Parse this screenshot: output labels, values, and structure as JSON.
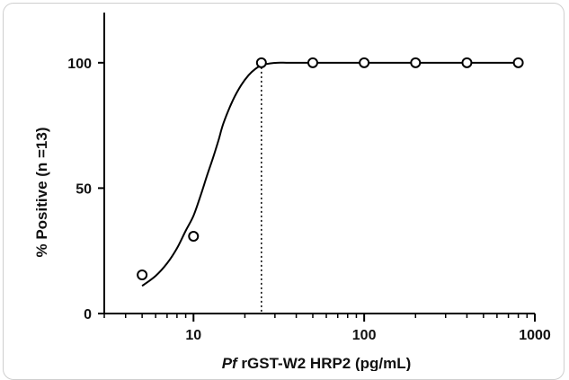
{
  "chart_data": {
    "type": "scatter",
    "title": "",
    "xlabel": {
      "italic_prefix": "Pf",
      "rest": " rGST-W2 HRP2 (pg/mL)"
    },
    "ylabel": "% Positive (n =13)",
    "xscale": "log",
    "xlim": [
      3,
      1000
    ],
    "ylim": [
      0,
      120
    ],
    "xticks": [
      10,
      100,
      1000
    ],
    "xtick_labels": [
      "10",
      "100",
      "1000"
    ],
    "yticks": [
      0,
      50,
      100
    ],
    "ytick_labels": [
      "0",
      "50",
      "100"
    ],
    "grid": false,
    "legend": "none",
    "series": [
      {
        "values": [
          {
            "x": 5,
            "y": 15.4
          },
          {
            "x": 10,
            "y": 30.8
          },
          {
            "x": 25,
            "y": 100
          },
          {
            "x": 50,
            "y": 100
          },
          {
            "x": 100,
            "y": 100
          },
          {
            "x": 200,
            "y": 100
          },
          {
            "x": 400,
            "y": 100
          },
          {
            "x": 800,
            "y": 100
          }
        ]
      }
    ],
    "fit_curve": {
      "type": "sigmoid",
      "x": [
        5,
        6,
        7,
        8,
        9,
        10,
        11,
        12,
        13,
        14,
        15,
        17,
        19,
        21,
        23,
        25,
        28,
        31,
        35,
        40,
        50,
        100,
        200,
        400,
        800
      ],
      "y": [
        11,
        15,
        20,
        26,
        33,
        39,
        47,
        55,
        62,
        69,
        76,
        85,
        91,
        95,
        97.5,
        99,
        99.7,
        100,
        100,
        100,
        100,
        100,
        100,
        100,
        100
      ]
    },
    "reference_line": {
      "x": 25,
      "style": "dotted"
    },
    "colors": {
      "line": "#000000",
      "marker_fill": "#ffffff",
      "marker_stroke": "#000000"
    }
  }
}
